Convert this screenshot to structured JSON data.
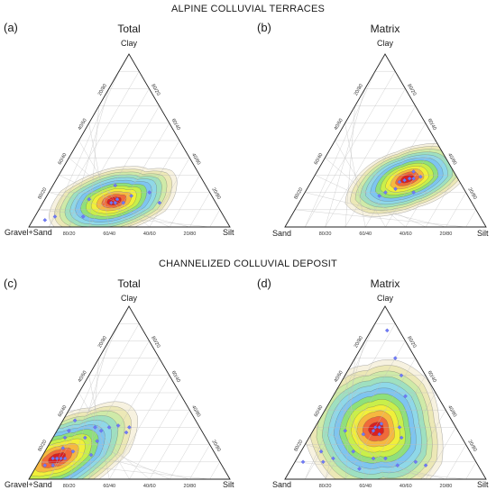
{
  "sections": [
    {
      "title": "ALPINE COLLUVIAL TERRACES"
    },
    {
      "title": "CHANNELIZED COLLUVIAL DEPOSIT"
    }
  ],
  "panels": [
    {
      "letter": "(a)",
      "title": "Total",
      "left_label": "Gravel+Sand",
      "right_label": "Silt",
      "top_label": "Clay"
    },
    {
      "letter": "(b)",
      "title": "Matrix",
      "left_label": "Sand",
      "right_label": "Silt",
      "top_label": "Clay"
    },
    {
      "letter": "(c)",
      "title": "Total",
      "left_label": "Gravel+Sand",
      "right_label": "Silt",
      "top_label": "Clay"
    },
    {
      "letter": "(d)",
      "title": "Matrix",
      "left_label": "Sand",
      "right_label": "Silt",
      "top_label": "Clay"
    }
  ],
  "tick_labels": {
    "bottom": [
      "80/20",
      "60/40",
      "40/60",
      "20/80"
    ],
    "left": [
      "80/20",
      "60/40",
      "40/60",
      "20/80"
    ],
    "right": [
      "80/20",
      "60/40",
      "40/60",
      "20/80"
    ]
  },
  "density_colors": [
    "#f7f2e0",
    "#ece8b6",
    "#cfeaa8",
    "#9fe0c0",
    "#8fd8e8",
    "#7ec5f0",
    "#8fe07a",
    "#c9ef4a",
    "#f1ef3a",
    "#f6b840",
    "#f06a3a",
    "#d92020"
  ],
  "chart_data": [
    {
      "type": "scatter",
      "subtype": "ternary_density",
      "panel": "(a)",
      "title": "Total",
      "components": [
        "Gravel+Sand",
        "Silt",
        "Clay"
      ],
      "peak": {
        "gravel_sand": 50,
        "silt": 35,
        "clay": 15
      },
      "points": [
        {
          "gravel_sand": 50,
          "silt": 36,
          "clay": 14
        },
        {
          "gravel_sand": 48,
          "silt": 36,
          "clay": 16
        },
        {
          "gravel_sand": 46,
          "silt": 40,
          "clay": 14
        },
        {
          "gravel_sand": 52,
          "silt": 34,
          "clay": 14
        },
        {
          "gravel_sand": 40,
          "silt": 42,
          "clay": 18
        },
        {
          "gravel_sand": 30,
          "silt": 50,
          "clay": 20
        },
        {
          "gravel_sand": 28,
          "silt": 58,
          "clay": 14
        },
        {
          "gravel_sand": 70,
          "silt": 24,
          "clay": 6
        },
        {
          "gravel_sand": 90,
          "silt": 6,
          "clay": 4
        },
        {
          "gravel_sand": 84,
          "silt": 10,
          "clay": 6
        },
        {
          "gravel_sand": 62,
          "silt": 22,
          "clay": 16
        },
        {
          "gravel_sand": 45,
          "silt": 31,
          "clay": 24
        }
      ]
    },
    {
      "type": "scatter",
      "subtype": "ternary_density",
      "panel": "(b)",
      "title": "Matrix",
      "components": [
        "Sand",
        "Silt",
        "Clay"
      ],
      "peak": {
        "sand": 25,
        "silt": 47,
        "clay": 28
      },
      "points": [
        {
          "sand": 24,
          "silt": 48,
          "clay": 28
        },
        {
          "sand": 27,
          "silt": 46,
          "clay": 27
        },
        {
          "sand": 22,
          "silt": 50,
          "clay": 28
        },
        {
          "sand": 30,
          "silt": 44,
          "clay": 26
        },
        {
          "sand": 20,
          "silt": 48,
          "clay": 32
        },
        {
          "sand": 18,
          "silt": 53,
          "clay": 29
        },
        {
          "sand": 34,
          "silt": 44,
          "clay": 22
        },
        {
          "sand": 40,
          "silt": 40,
          "clay": 20
        },
        {
          "sand": 26,
          "silt": 54,
          "clay": 20
        },
        {
          "sand": 44,
          "silt": 38,
          "clay": 18
        }
      ]
    },
    {
      "type": "scatter",
      "subtype": "ternary_density",
      "panel": "(c)",
      "title": "Total",
      "components": [
        "Gravel+Sand",
        "Silt",
        "Clay"
      ],
      "peak": {
        "gravel_sand": 80,
        "silt": 8,
        "clay": 12
      },
      "points": [
        {
          "gravel_sand": 80,
          "silt": 8,
          "clay": 12
        },
        {
          "gravel_sand": 78,
          "silt": 10,
          "clay": 12
        },
        {
          "gravel_sand": 82,
          "silt": 6,
          "clay": 12
        },
        {
          "gravel_sand": 76,
          "silt": 12,
          "clay": 12
        },
        {
          "gravel_sand": 74,
          "silt": 8,
          "clay": 18
        },
        {
          "gravel_sand": 70,
          "silt": 14,
          "clay": 16
        },
        {
          "gravel_sand": 60,
          "silt": 16,
          "clay": 24
        },
        {
          "gravel_sand": 55,
          "silt": 23,
          "clay": 22
        },
        {
          "gravel_sand": 50,
          "silt": 22,
          "clay": 28
        },
        {
          "gravel_sand": 45,
          "silt": 25,
          "clay": 30
        },
        {
          "gravel_sand": 52,
          "silt": 18,
          "clay": 30
        },
        {
          "gravel_sand": 62,
          "silt": 24,
          "clay": 14
        },
        {
          "gravel_sand": 88,
          "silt": 4,
          "clay": 8
        },
        {
          "gravel_sand": 84,
          "silt": 8,
          "clay": 8
        },
        {
          "gravel_sand": 70,
          "silt": 6,
          "clay": 24
        },
        {
          "gravel_sand": 66,
          "silt": 6,
          "clay": 28
        },
        {
          "gravel_sand": 60,
          "silt": 6,
          "clay": 34
        },
        {
          "gravel_sand": 40,
          "silt": 29,
          "clay": 31
        },
        {
          "gravel_sand": 35,
          "silt": 35,
          "clay": 30
        },
        {
          "gravel_sand": 38,
          "silt": 35,
          "clay": 27
        }
      ]
    },
    {
      "type": "scatter",
      "subtype": "ternary_density",
      "panel": "(d)",
      "title": "Matrix",
      "components": [
        "Sand",
        "Silt",
        "Clay"
      ],
      "peak": {
        "sand": 40,
        "silt": 31,
        "clay": 29
      },
      "points": [
        {
          "sand": 40,
          "silt": 30,
          "clay": 30
        },
        {
          "sand": 38,
          "silt": 32,
          "clay": 30
        },
        {
          "sand": 42,
          "silt": 30,
          "clay": 28
        },
        {
          "sand": 36,
          "silt": 32,
          "clay": 32
        },
        {
          "sand": 40,
          "silt": 34,
          "clay": 26
        },
        {
          "sand": 30,
          "silt": 46,
          "clay": 24
        },
        {
          "sand": 28,
          "silt": 42,
          "clay": 30
        },
        {
          "sand": 48,
          "silt": 26,
          "clay": 26
        },
        {
          "sand": 58,
          "silt": 26,
          "clay": 16
        },
        {
          "sand": 50,
          "silt": 38,
          "clay": 12
        },
        {
          "sand": 60,
          "silt": 34,
          "clay": 6
        },
        {
          "sand": 30,
          "silt": 60,
          "clay": 10
        },
        {
          "sand": 26,
          "silt": 66,
          "clay": 8
        },
        {
          "sand": 16,
          "silt": 36,
          "clay": 48
        },
        {
          "sand": 12,
          "silt": 28,
          "clay": 60
        },
        {
          "sand": 10,
          "silt": 20,
          "clay": 70
        },
        {
          "sand": 6,
          "silt": 8,
          "clay": 86
        },
        {
          "sand": 70,
          "silt": 18,
          "clay": 12
        },
        {
          "sand": 76,
          "silt": 14,
          "clay": 10
        },
        {
          "sand": 86,
          "silt": 4,
          "clay": 10
        },
        {
          "sand": 74,
          "silt": 10,
          "clay": 16
        },
        {
          "sand": 56,
          "silt": 16,
          "clay": 28
        },
        {
          "sand": 44,
          "silt": 44,
          "clay": 12
        },
        {
          "sand": 40,
          "silt": 52,
          "clay": 8
        }
      ]
    }
  ]
}
